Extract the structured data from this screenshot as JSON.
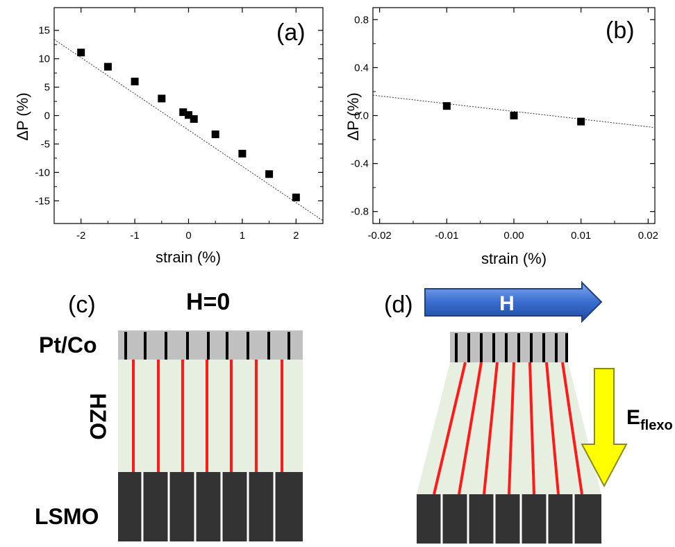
{
  "chart_data": [
    {
      "panel_label": "(a)",
      "type": "scatter",
      "xlabel": "strain (%)",
      "ylabel": "ΔP (%)",
      "xlim": [
        -2.5,
        2.5
      ],
      "ylim": [
        -19,
        19
      ],
      "xticks": [
        -2,
        -1,
        0,
        1,
        2
      ],
      "yticks": [
        -15,
        -10,
        -5,
        0,
        5,
        10,
        15
      ],
      "x": [
        -2,
        -1.5,
        -1,
        -0.5,
        -0.1,
        0,
        0.1,
        0.5,
        1,
        1.5,
        2
      ],
      "y": [
        11.1,
        8.6,
        6.0,
        3.0,
        0.6,
        0.1,
        -0.6,
        -3.3,
        -6.7,
        -10.3,
        -14.4
      ],
      "fit_line": {
        "x": [
          -2.5,
          2.5
        ],
        "y": [
          13.4,
          -18.5
        ],
        "style": "dotted"
      },
      "grid": false
    },
    {
      "panel_label": "(b)",
      "type": "scatter",
      "xlabel": "strain (%)",
      "ylabel": "ΔP (%)",
      "xlim": [
        -0.021,
        0.021
      ],
      "ylim": [
        -0.9,
        0.9
      ],
      "xticks": [
        -0.02,
        -0.01,
        0.0,
        0.01,
        0.02
      ],
      "xtick_labels": [
        "-0.02",
        "-0.01",
        "0.00",
        "0.01",
        "0.02"
      ],
      "yticks": [
        -0.8,
        -0.4,
        0.0,
        0.4,
        0.8
      ],
      "ytick_labels": [
        "-0.8",
        "-0.4",
        "0.0",
        "0.4",
        "0.8"
      ],
      "x": [
        -0.01,
        0.0,
        0.01
      ],
      "y": [
        0.08,
        0.0,
        -0.05
      ],
      "fit_line": {
        "x": [
          -0.021,
          0.021
        ],
        "y": [
          0.17,
          -0.1
        ],
        "style": "dotted"
      },
      "grid": false
    }
  ],
  "diagram_c": {
    "panel_label": "(c)",
    "title": "H=0",
    "top_label": "Pt/Co",
    "middle_label": "HZO",
    "bottom_label": "LSMO"
  },
  "diagram_d": {
    "panel_label": "(d)",
    "arrow_label": "H",
    "efield_label_main": "E",
    "efield_label_sub": "flexo"
  },
  "colors": {
    "marker": "#000000",
    "cap_layer": "#c0c0c0",
    "hzo_layer": "#e6efe0",
    "substrate": "#333333",
    "domain_wall": "#ff1a1a",
    "field_arrow": "#3a6fd0",
    "flexo_arrow": "#ffff00"
  }
}
